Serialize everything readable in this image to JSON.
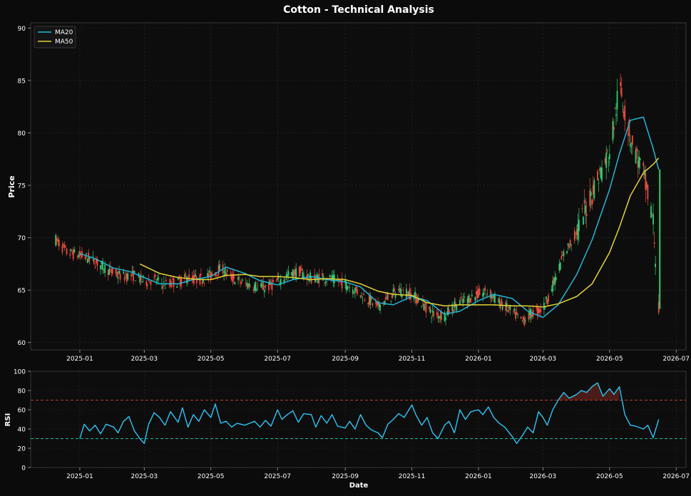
{
  "colors": {
    "background": "#0b0b0b",
    "axes_face": "#0d0d0d",
    "grid": "#2a2a2a",
    "text": "#ffffff",
    "up": "#2ecc71",
    "down": "#e74c3c",
    "ma20": "#1fb6d8",
    "ma50": "#e4d132",
    "rsi": "#29c5f6",
    "overbought": "#c0392b",
    "oversold": "#1abc9c"
  },
  "chart_data": [
    {
      "type": "candlestick",
      "title": "Cotton - Technical Analysis",
      "xlabel": "",
      "ylabel": "Price",
      "x_range": [
        "2024-11-17",
        "2026-07-10"
      ],
      "ylim": [
        59.3,
        90.5
      ],
      "yticks": [
        60,
        65,
        70,
        75,
        80,
        85,
        90
      ],
      "xticks": [
        "2025-01",
        "2025-03",
        "2025-05",
        "2025-07",
        "2025-09",
        "2025-11",
        "2026-01",
        "2026-03",
        "2026-05",
        "2026-07"
      ],
      "grid": true,
      "legend_position": "top-left",
      "legend": [
        "MA20",
        "MA50"
      ],
      "series_close": [
        [
          "2024-12-10",
          69.8
        ],
        [
          "2024-12-20",
          68.6
        ],
        [
          "2025-01-01",
          68.3
        ],
        [
          "2025-01-10",
          68.0
        ],
        [
          "2025-01-20",
          67.4
        ],
        [
          "2025-02-01",
          66.6
        ],
        [
          "2025-02-10",
          66.3
        ],
        [
          "2025-02-20",
          66.4
        ],
        [
          "2025-03-01",
          65.8
        ],
        [
          "2025-03-10",
          66.0
        ],
        [
          "2025-03-20",
          65.5
        ],
        [
          "2025-04-01",
          65.8
        ],
        [
          "2025-04-10",
          66.2
        ],
        [
          "2025-04-20",
          66.0
        ],
        [
          "2025-05-01",
          66.4
        ],
        [
          "2025-05-10",
          67.1
        ],
        [
          "2025-05-20",
          66.2
        ],
        [
          "2025-06-01",
          65.6
        ],
        [
          "2025-06-10",
          65.4
        ],
        [
          "2025-06-20",
          65.2
        ],
        [
          "2025-07-01",
          65.8
        ],
        [
          "2025-07-10",
          66.4
        ],
        [
          "2025-07-20",
          66.8
        ],
        [
          "2025-08-01",
          66.1
        ],
        [
          "2025-08-10",
          66.2
        ],
        [
          "2025-08-20",
          66.0
        ],
        [
          "2025-09-01",
          65.6
        ],
        [
          "2025-09-10",
          65.0
        ],
        [
          "2025-09-20",
          64.3
        ],
        [
          "2025-10-01",
          63.4
        ],
        [
          "2025-10-10",
          64.2
        ],
        [
          "2025-10-20",
          65.0
        ],
        [
          "2025-11-01",
          64.6
        ],
        [
          "2025-11-10",
          63.8
        ],
        [
          "2025-11-20",
          62.7
        ],
        [
          "2025-12-01",
          62.6
        ],
        [
          "2025-12-10",
          63.5
        ],
        [
          "2025-12-20",
          64.1
        ],
        [
          "2026-01-01",
          64.6
        ],
        [
          "2026-01-10",
          64.8
        ],
        [
          "2026-01-20",
          63.8
        ],
        [
          "2026-02-01",
          62.9
        ],
        [
          "2026-02-10",
          62.0
        ],
        [
          "2026-02-20",
          62.9
        ],
        [
          "2026-03-01",
          63.2
        ],
        [
          "2026-03-10",
          65.4
        ],
        [
          "2026-03-20",
          68.4
        ],
        [
          "2026-04-01",
          70.5
        ],
        [
          "2026-04-10",
          73.0
        ],
        [
          "2026-04-20",
          75.6
        ],
        [
          "2026-05-01",
          78.2
        ],
        [
          "2026-05-10",
          84.5
        ],
        [
          "2026-05-20",
          79.6
        ],
        [
          "2026-06-01",
          76.0
        ],
        [
          "2026-06-10",
          71.5
        ],
        [
          "2026-06-15",
          63.2
        ]
      ],
      "series": [
        {
          "name": "MA20",
          "points": [
            [
              "2025-01-01",
              68.5
            ],
            [
              "2025-01-15",
              68.0
            ],
            [
              "2025-02-01",
              67.1
            ],
            [
              "2025-02-15",
              66.8
            ],
            [
              "2025-03-01",
              66.2
            ],
            [
              "2025-03-15",
              65.6
            ],
            [
              "2025-04-01",
              65.6
            ],
            [
              "2025-04-15",
              66.0
            ],
            [
              "2025-05-01",
              66.3
            ],
            [
              "2025-05-15",
              67.2
            ],
            [
              "2025-06-01",
              66.6
            ],
            [
              "2025-06-15",
              65.9
            ],
            [
              "2025-07-01",
              65.5
            ],
            [
              "2025-07-15",
              66.0
            ],
            [
              "2025-08-01",
              66.3
            ],
            [
              "2025-08-15",
              66.0
            ],
            [
              "2025-09-01",
              65.8
            ],
            [
              "2025-09-15",
              65.3
            ],
            [
              "2025-10-01",
              63.8
            ],
            [
              "2025-10-15",
              63.6
            ],
            [
              "2025-11-01",
              64.4
            ],
            [
              "2025-11-15",
              64.0
            ],
            [
              "2025-12-01",
              62.7
            ],
            [
              "2025-12-15",
              63.0
            ],
            [
              "2026-01-01",
              64.0
            ],
            [
              "2026-01-15",
              64.6
            ],
            [
              "2026-02-01",
              64.2
            ],
            [
              "2026-02-15",
              63.0
            ],
            [
              "2026-03-01",
              62.4
            ],
            [
              "2026-03-15",
              63.6
            ],
            [
              "2026-04-01",
              66.5
            ],
            [
              "2026-04-15",
              69.8
            ],
            [
              "2026-05-01",
              74.6
            ],
            [
              "2026-05-10",
              78.0
            ],
            [
              "2026-05-20",
              81.2
            ],
            [
              "2026-06-01",
              81.5
            ],
            [
              "2026-06-10",
              78.5
            ],
            [
              "2026-06-15",
              76.5
            ]
          ]
        },
        {
          "name": "MA50",
          "points": [
            [
              "2025-02-25",
              67.5
            ],
            [
              "2025-03-15",
              66.6
            ],
            [
              "2025-04-01",
              66.2
            ],
            [
              "2025-04-20",
              66.0
            ],
            [
              "2025-05-01",
              66.0
            ],
            [
              "2025-05-15",
              66.4
            ],
            [
              "2025-06-01",
              66.5
            ],
            [
              "2025-06-15",
              66.3
            ],
            [
              "2025-07-01",
              66.3
            ],
            [
              "2025-07-15",
              66.2
            ],
            [
              "2025-08-01",
              66.0
            ],
            [
              "2025-08-15",
              66.1
            ],
            [
              "2025-09-01",
              66.0
            ],
            [
              "2025-09-15",
              65.6
            ],
            [
              "2025-10-01",
              64.9
            ],
            [
              "2025-10-15",
              64.6
            ],
            [
              "2025-11-01",
              64.5
            ],
            [
              "2025-11-15",
              63.8
            ],
            [
              "2025-12-01",
              63.5
            ],
            [
              "2025-12-15",
              63.6
            ],
            [
              "2026-01-01",
              63.6
            ],
            [
              "2026-01-15",
              63.6
            ],
            [
              "2026-02-01",
              63.5
            ],
            [
              "2026-02-15",
              63.5
            ],
            [
              "2026-03-01",
              63.4
            ],
            [
              "2026-03-15",
              63.7
            ],
            [
              "2026-04-01",
              64.4
            ],
            [
              "2026-04-15",
              65.6
            ],
            [
              "2026-05-01",
              68.6
            ],
            [
              "2026-05-10",
              71.0
            ],
            [
              "2026-05-20",
              74.0
            ],
            [
              "2026-06-01",
              76.2
            ],
            [
              "2026-06-10",
              77.0
            ],
            [
              "2026-06-15",
              77.6
            ]
          ]
        }
      ]
    },
    {
      "type": "line",
      "title": "",
      "xlabel": "Date",
      "ylabel": "RSI",
      "x_range": [
        "2024-11-17",
        "2026-07-10"
      ],
      "ylim": [
        0,
        100
      ],
      "yticks": [
        0,
        20,
        40,
        60,
        80,
        100
      ],
      "xticks": [
        "2025-01",
        "2025-03",
        "2025-05",
        "2025-07",
        "2025-09",
        "2025-11",
        "2026-01",
        "2026-03",
        "2026-05",
        "2026-07"
      ],
      "grid": true,
      "reference_lines": [
        {
          "y": 70,
          "style": "dashed",
          "color": "#c0392b"
        },
        {
          "y": 30,
          "style": "dashed",
          "color": "#1abc9c"
        }
      ],
      "series": [
        {
          "points": [
            [
              "2025-01-01",
              30
            ],
            [
              "2025-01-05",
              45
            ],
            [
              "2025-01-10",
              38
            ],
            [
              "2025-01-15",
              44
            ],
            [
              "2025-01-20",
              35
            ],
            [
              "2025-01-25",
              45
            ],
            [
              "2025-02-01",
              42
            ],
            [
              "2025-02-05",
              36
            ],
            [
              "2025-02-10",
              48
            ],
            [
              "2025-02-15",
              53
            ],
            [
              "2025-02-20",
              38
            ],
            [
              "2025-02-25",
              30
            ],
            [
              "2025-03-01",
              25
            ],
            [
              "2025-03-05",
              45
            ],
            [
              "2025-03-10",
              57
            ],
            [
              "2025-03-15",
              52
            ],
            [
              "2025-03-20",
              44
            ],
            [
              "2025-03-25",
              58
            ],
            [
              "2025-04-01",
              47
            ],
            [
              "2025-04-05",
              62
            ],
            [
              "2025-04-10",
              42
            ],
            [
              "2025-04-15",
              55
            ],
            [
              "2025-04-20",
              48
            ],
            [
              "2025-04-25",
              60
            ],
            [
              "2025-05-01",
              52
            ],
            [
              "2025-05-05",
              66
            ],
            [
              "2025-05-10",
              46
            ],
            [
              "2025-05-15",
              48
            ],
            [
              "2025-05-20",
              42
            ],
            [
              "2025-05-25",
              46
            ],
            [
              "2025-06-01",
              44
            ],
            [
              "2025-06-10",
              48
            ],
            [
              "2025-06-15",
              42
            ],
            [
              "2025-06-20",
              49
            ],
            [
              "2025-06-25",
              43
            ],
            [
              "2025-07-01",
              60
            ],
            [
              "2025-07-05",
              50
            ],
            [
              "2025-07-10",
              55
            ],
            [
              "2025-07-15",
              59
            ],
            [
              "2025-07-20",
              47
            ],
            [
              "2025-07-25",
              56
            ],
            [
              "2025-08-01",
              55
            ],
            [
              "2025-08-05",
              42
            ],
            [
              "2025-08-10",
              54
            ],
            [
              "2025-08-15",
              46
            ],
            [
              "2025-08-20",
              55
            ],
            [
              "2025-08-25",
              43
            ],
            [
              "2025-09-01",
              41
            ],
            [
              "2025-09-05",
              48
            ],
            [
              "2025-09-10",
              40
            ],
            [
              "2025-09-15",
              55
            ],
            [
              "2025-09-20",
              44
            ],
            [
              "2025-09-25",
              39
            ],
            [
              "2025-10-01",
              36
            ],
            [
              "2025-10-05",
              31
            ],
            [
              "2025-10-10",
              45
            ],
            [
              "2025-10-15",
              50
            ],
            [
              "2025-10-20",
              56
            ],
            [
              "2025-10-25",
              52
            ],
            [
              "2025-11-01",
              65
            ],
            [
              "2025-11-05",
              54
            ],
            [
              "2025-11-10",
              44
            ],
            [
              "2025-11-15",
              52
            ],
            [
              "2025-11-20",
              36
            ],
            [
              "2025-11-25",
              30
            ],
            [
              "2025-12-01",
              44
            ],
            [
              "2025-12-05",
              48
            ],
            [
              "2025-12-10",
              36
            ],
            [
              "2025-12-15",
              60
            ],
            [
              "2025-12-20",
              50
            ],
            [
              "2025-12-25",
              58
            ],
            [
              "2026-01-01",
              60
            ],
            [
              "2026-01-05",
              55
            ],
            [
              "2026-01-10",
              63
            ],
            [
              "2026-01-15",
              52
            ],
            [
              "2026-01-20",
              46
            ],
            [
              "2026-01-25",
              42
            ],
            [
              "2026-02-01",
              32
            ],
            [
              "2026-02-05",
              25
            ],
            [
              "2026-02-10",
              33
            ],
            [
              "2026-02-15",
              42
            ],
            [
              "2026-02-20",
              36
            ],
            [
              "2026-02-25",
              58
            ],
            [
              "2026-03-01",
              52
            ],
            [
              "2026-03-05",
              44
            ],
            [
              "2026-03-10",
              60
            ],
            [
              "2026-03-15",
              70
            ],
            [
              "2026-03-20",
              78
            ],
            [
              "2026-03-25",
              72
            ],
            [
              "2026-04-01",
              76
            ],
            [
              "2026-04-05",
              80
            ],
            [
              "2026-04-10",
              78
            ],
            [
              "2026-04-15",
              84
            ],
            [
              "2026-04-20",
              88
            ],
            [
              "2026-04-25",
              74
            ],
            [
              "2026-05-01",
              82
            ],
            [
              "2026-05-05",
              76
            ],
            [
              "2026-05-10",
              84
            ],
            [
              "2026-05-15",
              55
            ],
            [
              "2026-05-20",
              44
            ],
            [
              "2026-05-25",
              43
            ],
            [
              "2026-06-01",
              40
            ],
            [
              "2026-06-05",
              44
            ],
            [
              "2026-06-10",
              31
            ],
            [
              "2026-06-15",
              50
            ]
          ]
        }
      ]
    }
  ]
}
